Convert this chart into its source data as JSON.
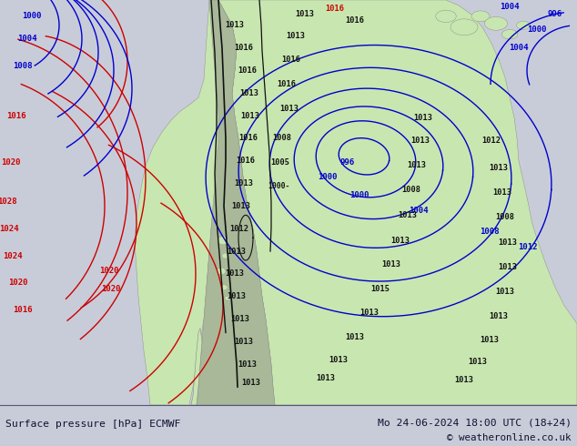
{
  "title_left": "Surface pressure [hPa] ECMWF",
  "title_right": "Mo 24-06-2024 18:00 UTC (18+24)",
  "copyright": "© weatheronline.co.uk",
  "ocean_color": "#b8c8d8",
  "land_color": "#c8e6b0",
  "mountain_color": "#a8b898",
  "figsize": [
    6.34,
    4.9
  ],
  "dpi": 100,
  "blue": "#0000cc",
  "red": "#cc0000",
  "black": "#111111",
  "bottom_bg": "#c8ccd8",
  "map_bg": "#b8c8d8"
}
